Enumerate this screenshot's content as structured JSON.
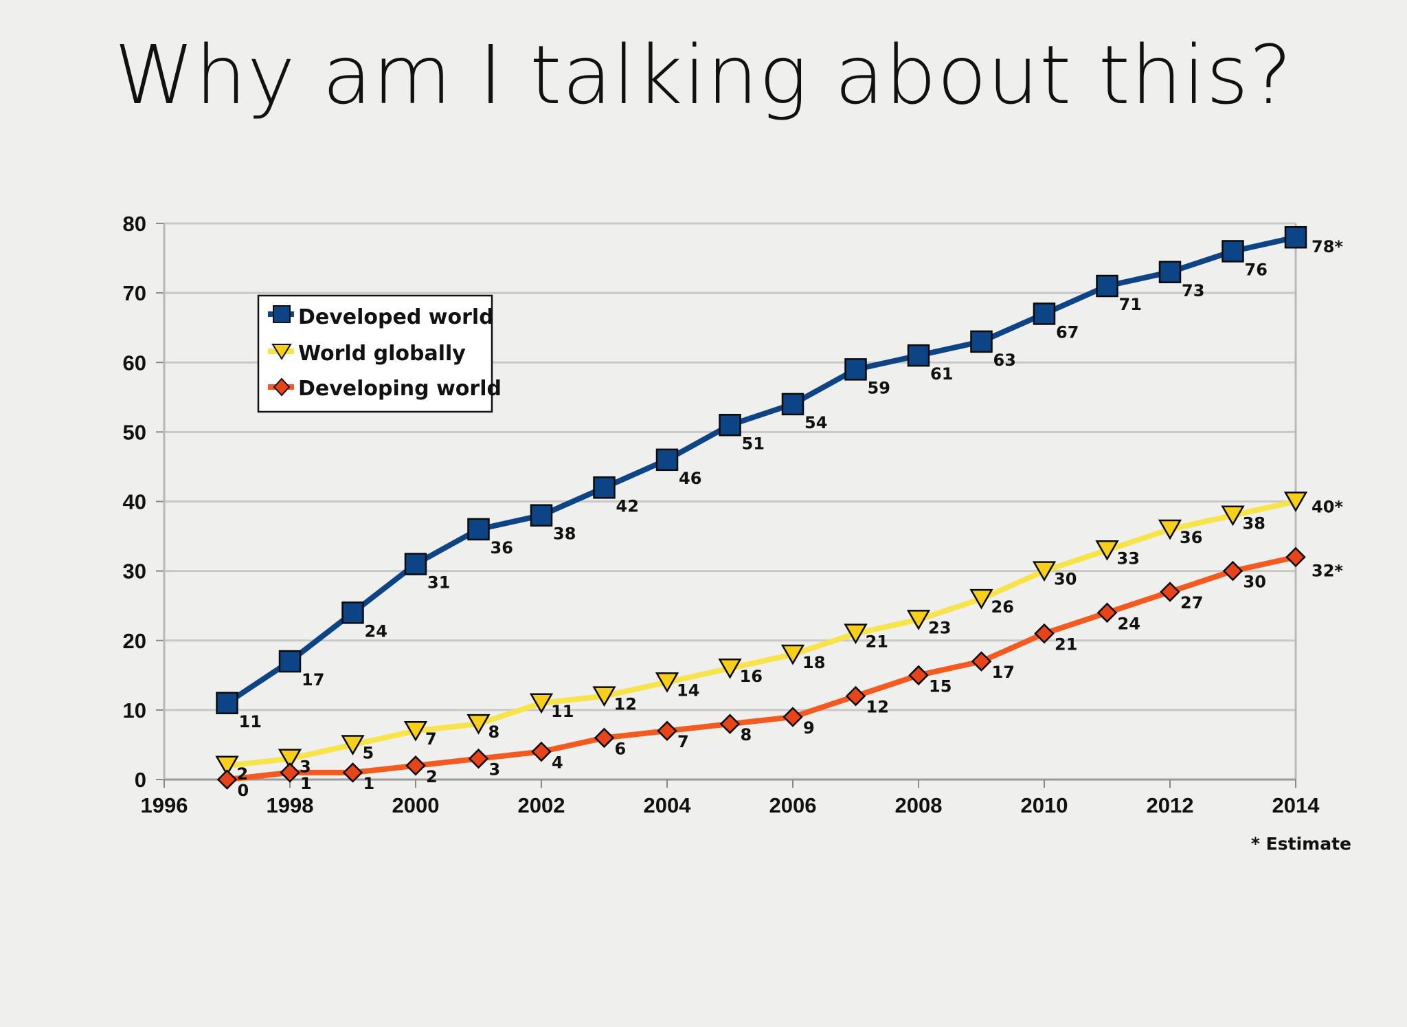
{
  "slide": {
    "title": "Why am I talking about this?"
  },
  "colors": {
    "background": "#efefed",
    "developed": "#0d4485",
    "globally": "#f7e34a",
    "developing": "#f25a1f",
    "marker_developed": "#0d4485",
    "marker_globally": "#f7cf1a",
    "marker_developing": "#e8441a",
    "grid": "#c8c8c8"
  },
  "chart_data": {
    "type": "line",
    "title": "",
    "xlabel": "",
    "ylabel": "",
    "xlim": [
      1996,
      2014
    ],
    "ylim": [
      0,
      80
    ],
    "x_ticks": [
      "1996",
      "1998",
      "2000",
      "2002",
      "2004",
      "2006",
      "2008",
      "2010",
      "2012",
      "2014"
    ],
    "y_ticks": [
      "0",
      "10",
      "20",
      "30",
      "40",
      "50",
      "60",
      "70",
      "80"
    ],
    "grid": true,
    "legend_position": "top-left",
    "footnote": "* Estimate",
    "x": [
      1997,
      1998,
      1999,
      2000,
      2001,
      2002,
      2003,
      2004,
      2005,
      2006,
      2007,
      2008,
      2009,
      2010,
      2011,
      2012,
      2013,
      2014
    ],
    "series": [
      {
        "name": "Developed world",
        "key": "developed",
        "marker": "square",
        "values": [
          11,
          17,
          24,
          31,
          36,
          38,
          42,
          46,
          51,
          54,
          59,
          61,
          63,
          67,
          71,
          73,
          76,
          78
        ],
        "labels": [
          "11",
          "17",
          "24",
          "31",
          "36",
          "38",
          "42",
          "46",
          "51",
          "54",
          "59",
          "61",
          "63",
          "67",
          "71",
          "73",
          "76",
          "78*"
        ]
      },
      {
        "name": "World globally",
        "key": "globally",
        "marker": "triangle-down",
        "values": [
          2,
          3,
          5,
          7,
          8,
          11,
          12,
          14,
          16,
          18,
          21,
          23,
          26,
          30,
          33,
          36,
          38,
          40
        ],
        "labels": [
          "2",
          "3",
          "5",
          "7",
          "8",
          "11",
          "12",
          "14",
          "16",
          "18",
          "21",
          "23",
          "26",
          "30",
          "33",
          "36",
          "38",
          "40*"
        ]
      },
      {
        "name": "Developing world",
        "key": "developing",
        "marker": "diamond",
        "values": [
          0,
          1,
          1,
          2,
          3,
          4,
          6,
          7,
          8,
          9,
          12,
          15,
          17,
          21,
          24,
          27,
          30,
          32
        ],
        "labels": [
          "0",
          "1",
          "1",
          "2",
          "3",
          "4",
          "6",
          "7",
          "8",
          "9",
          "12",
          "15",
          "17",
          "21",
          "24",
          "27",
          "30",
          "32*"
        ]
      }
    ]
  }
}
